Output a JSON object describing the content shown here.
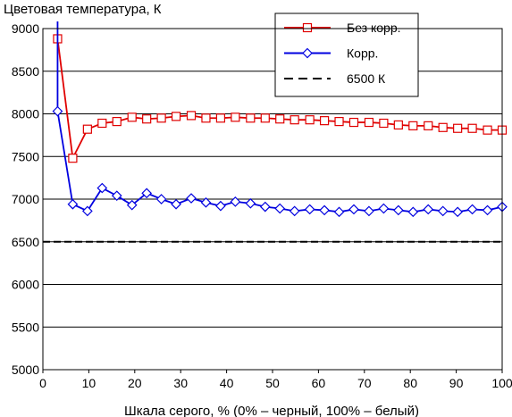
{
  "chart_data": {
    "type": "line",
    "title": "",
    "ylabel": "Цветовая температура, К",
    "xlabel": "Шкала серого, % (0% – черный, 100% – белый)",
    "xlim": [
      0,
      100
    ],
    "ylim": [
      5000,
      9000
    ],
    "xticks": [
      0,
      10,
      20,
      30,
      40,
      50,
      60,
      70,
      80,
      90,
      100
    ],
    "yticks": [
      5000,
      5500,
      6000,
      6500,
      7000,
      7500,
      8000,
      8500,
      9000
    ],
    "grid": "horizontal",
    "legend_position": "top-right",
    "series": [
      {
        "name": "Без корр.",
        "color": "#e00000",
        "marker": "square",
        "x": [
          3.2,
          6.5,
          9.7,
          12.9,
          16.1,
          19.4,
          22.6,
          25.8,
          29.0,
          32.3,
          35.5,
          38.7,
          41.9,
          45.2,
          48.4,
          51.6,
          54.8,
          58.1,
          61.3,
          64.5,
          67.7,
          71.0,
          74.2,
          77.4,
          80.6,
          83.9,
          87.1,
          90.3,
          93.5,
          96.8,
          100
        ],
        "y": [
          8880,
          7480,
          7820,
          7890,
          7910,
          7960,
          7940,
          7950,
          7970,
          7980,
          7950,
          7950,
          7960,
          7950,
          7950,
          7940,
          7930,
          7930,
          7920,
          7910,
          7900,
          7900,
          7890,
          7870,
          7860,
          7860,
          7840,
          7830,
          7830,
          7810,
          7810
        ]
      },
      {
        "name": "Корр.",
        "color": "#0000e0",
        "marker": "diamond",
        "x": [
          3.2,
          6.5,
          9.7,
          12.9,
          16.1,
          19.4,
          22.6,
          25.8,
          29.0,
          32.3,
          35.5,
          38.7,
          41.9,
          45.2,
          48.4,
          51.6,
          54.8,
          58.1,
          61.3,
          64.5,
          67.7,
          71.0,
          74.2,
          77.4,
          80.6,
          83.9,
          87.1,
          90.3,
          93.5,
          96.8,
          100
        ],
        "y": [
          8030,
          6940,
          6860,
          7130,
          7040,
          6930,
          7070,
          7000,
          6940,
          7010,
          6960,
          6920,
          6970,
          6950,
          6910,
          6890,
          6860,
          6880,
          6870,
          6850,
          6880,
          6860,
          6890,
          6870,
          6850,
          6880,
          6860,
          6850,
          6880,
          6870,
          6910
        ]
      },
      {
        "name": "6500 К",
        "color": "#000000",
        "style": "dashed",
        "x": [
          0,
          100
        ],
        "y": [
          6500,
          6500
        ]
      }
    ]
  }
}
